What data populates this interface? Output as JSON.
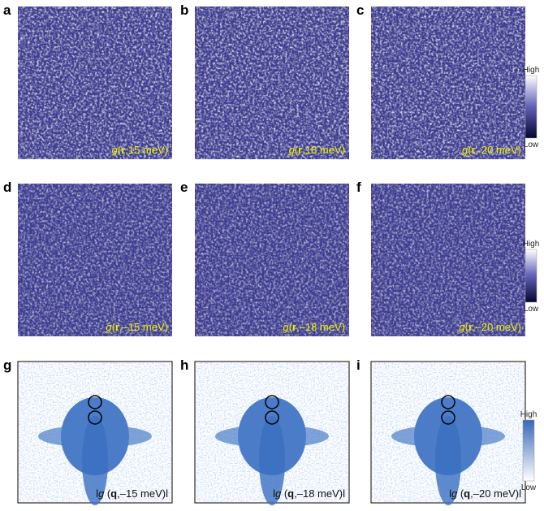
{
  "panels": [
    {
      "letter": "a",
      "label": [
        "g",
        "(",
        "r",
        ",15 meV)"
      ]
    },
    {
      "letter": "b",
      "label": [
        "g",
        "(",
        "r",
        ",18 meV)"
      ]
    },
    {
      "letter": "c",
      "label": [
        "g",
        "(",
        "r",
        ", 20 meV)"
      ]
    },
    {
      "letter": "d",
      "label": [
        "g",
        "(",
        "r",
        ",–15 meV)"
      ]
    },
    {
      "letter": "e",
      "label": [
        "g",
        "(",
        "r",
        ",–18 meV)"
      ]
    },
    {
      "letter": "f",
      "label": [
        "g",
        "(",
        "r",
        ",–20 meV)"
      ]
    },
    {
      "letter": "g",
      "label": [
        "l",
        "g",
        " (",
        "q",
        ",–15 meV)l"
      ]
    },
    {
      "letter": "h",
      "label": [
        "l",
        "g",
        " (",
        "q",
        ",–18 meV)l"
      ]
    },
    {
      "letter": "i",
      "label": [
        "l",
        "g",
        " (",
        "q",
        ",–20 meV)l"
      ]
    }
  ],
  "colorbars": [
    {
      "high": "High",
      "low": "Low"
    },
    {
      "high": "High",
      "low": "Low"
    },
    {
      "high": "High",
      "low": "Low"
    }
  ]
}
